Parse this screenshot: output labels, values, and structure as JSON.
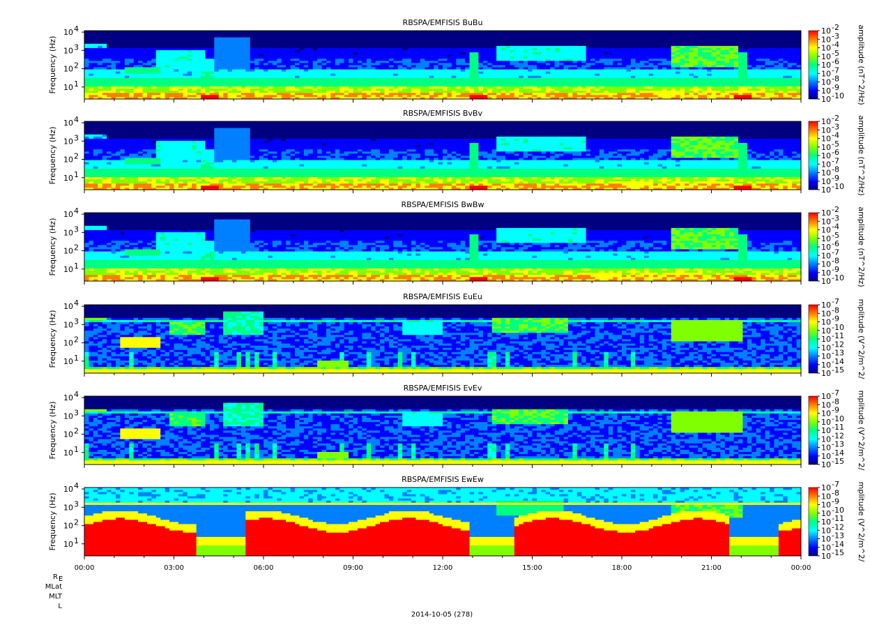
{
  "chart_data": [
    {
      "type": "heatmap",
      "title": "RBSPA/EMFISIS  BuBu",
      "ylabel": "Frequency (Hz)",
      "yscale": "log",
      "ylim": [
        2.2,
        12000
      ],
      "yticks": [
        "10",
        "10",
        "10",
        "10"
      ],
      "ytick_exps": [
        "1",
        "2",
        "3",
        "4"
      ],
      "colorbar": {
        "label": "amplitude (nT^2/Hz)",
        "scale": "log",
        "range": [
          1e-10,
          0.01
        ],
        "ticks": [
          "10",
          "10",
          "10",
          "10",
          "10",
          "10",
          "10",
          "10",
          "10"
        ],
        "tick_exps": [
          "-2",
          "-3",
          "-4",
          "-5",
          "-6",
          "-7",
          "-8",
          "-9",
          "-10"
        ]
      },
      "kind": "B"
    },
    {
      "type": "heatmap",
      "title": "RBSPA/EMFISIS  BvBv",
      "ylabel": "Frequency (Hz)",
      "yscale": "log",
      "ylim": [
        2.2,
        12000
      ],
      "yticks": [
        "10",
        "10",
        "10",
        "10"
      ],
      "ytick_exps": [
        "1",
        "2",
        "3",
        "4"
      ],
      "colorbar": {
        "label": "amplitude (nT^2/Hz)",
        "scale": "log",
        "range": [
          1e-10,
          0.01
        ],
        "ticks": [
          "10",
          "10",
          "10",
          "10",
          "10",
          "10",
          "10",
          "10",
          "10"
        ],
        "tick_exps": [
          "-2",
          "-3",
          "-4",
          "-5",
          "-6",
          "-7",
          "-8",
          "-9",
          "-10"
        ]
      },
      "kind": "B"
    },
    {
      "type": "heatmap",
      "title": "RBSPA/EMFISIS  BwBw",
      "ylabel": "Frequency (Hz)",
      "yscale": "log",
      "ylim": [
        2.2,
        12000
      ],
      "yticks": [
        "10",
        "10",
        "10",
        "10"
      ],
      "ytick_exps": [
        "1",
        "2",
        "3",
        "4"
      ],
      "colorbar": {
        "label": "amplitude (nT^2/Hz)",
        "scale": "log",
        "range": [
          1e-10,
          0.01
        ],
        "ticks": [
          "10",
          "10",
          "10",
          "10",
          "10",
          "10",
          "10",
          "10",
          "10"
        ],
        "tick_exps": [
          "-2",
          "-3",
          "-4",
          "-5",
          "-6",
          "-7",
          "-8",
          "-9",
          "-10"
        ]
      },
      "kind": "B"
    },
    {
      "type": "heatmap",
      "title": "RBSPA/EMFISIS  EuEu",
      "ylabel": "Frequency (Hz)",
      "yscale": "log",
      "ylim": [
        2.2,
        12000
      ],
      "yticks": [
        "10",
        "10",
        "10",
        "10"
      ],
      "ytick_exps": [
        "1",
        "2",
        "3",
        "4"
      ],
      "colorbar": {
        "label": "mplitude (V^2/m^2/",
        "scale": "log",
        "range": [
          1e-15,
          1e-07
        ],
        "ticks": [
          "10",
          "10",
          "10",
          "10",
          "10",
          "10",
          "10",
          "10",
          "10"
        ],
        "tick_exps": [
          "-7",
          "-8",
          "-9",
          "-10",
          "-11",
          "-12",
          "-13",
          "-14",
          "-15"
        ]
      },
      "kind": "E"
    },
    {
      "type": "heatmap",
      "title": "RBSPA/EMFISIS  EvEv",
      "ylabel": "Frequency (Hz)",
      "yscale": "log",
      "ylim": [
        2.2,
        12000
      ],
      "yticks": [
        "10",
        "10",
        "10",
        "10"
      ],
      "ytick_exps": [
        "1",
        "2",
        "3",
        "4"
      ],
      "colorbar": {
        "label": "mplitude (V^2/m^2/",
        "scale": "log",
        "range": [
          1e-15,
          1e-07
        ],
        "ticks": [
          "10",
          "10",
          "10",
          "10",
          "10",
          "10",
          "10",
          "10",
          "10"
        ],
        "tick_exps": [
          "-7",
          "-8",
          "-9",
          "-10",
          "-11",
          "-12",
          "-13",
          "-14",
          "-15"
        ]
      },
      "kind": "E"
    },
    {
      "type": "heatmap",
      "title": "RBSPA/EMFISIS  EwEw",
      "ylabel": "Frequency (Hz)",
      "yscale": "log",
      "ylim": [
        2.2,
        12000
      ],
      "yticks": [
        "10",
        "10",
        "10",
        "10"
      ],
      "ytick_exps": [
        "1",
        "2",
        "3",
        "4"
      ],
      "colorbar": {
        "label": "mplitude (V^2/m^2/",
        "scale": "log",
        "range": [
          1e-15,
          1e-07
        ],
        "ticks": [
          "10",
          "10",
          "10",
          "10",
          "10",
          "10",
          "10",
          "10",
          "10"
        ],
        "tick_exps": [
          "-7",
          "-8",
          "-9",
          "-10",
          "-11",
          "-12",
          "-13",
          "-14",
          "-15"
        ]
      },
      "kind": "Ew"
    }
  ],
  "x_axis": {
    "range_hours": [
      0,
      24
    ],
    "ticks": [
      "00:00",
      "03:00",
      "06:00",
      "09:00",
      "12:00",
      "15:00",
      "18:00",
      "21:00",
      "00:00"
    ]
  },
  "ephemeris_labels": [
    "R",
    "MLat",
    "MLT",
    "L"
  ],
  "ephemeris_subscript": "E",
  "date_label": "2014-10-05 (278)",
  "colormap": [
    "#000080",
    "#0000ff",
    "#0080ff",
    "#00ffff",
    "#00ff80",
    "#80ff00",
    "#ffff00",
    "#ff8000",
    "#ff0000"
  ]
}
